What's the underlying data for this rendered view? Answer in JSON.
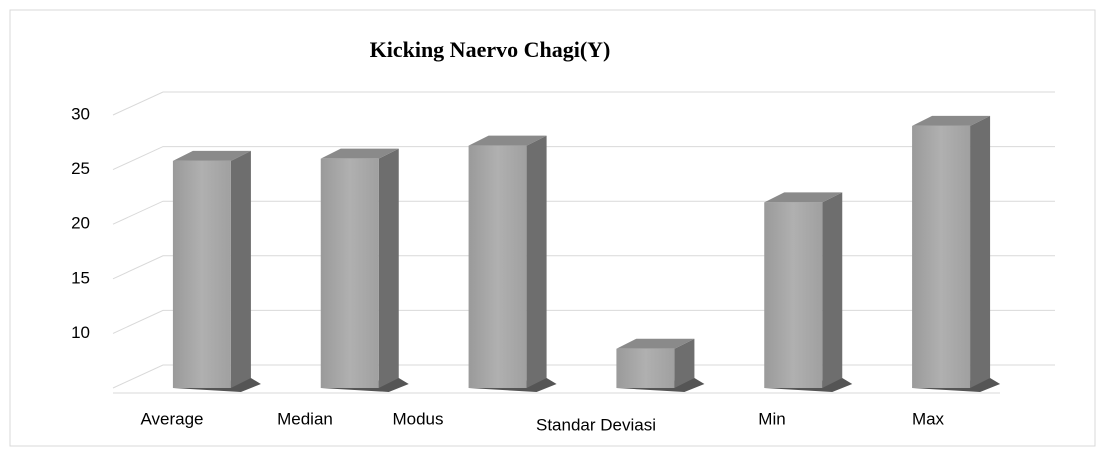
{
  "chart_data": {
    "type": "bar3d",
    "title": "Kicking Naervo Chagi(Y)",
    "categories": [
      "Average",
      "Median",
      "Modus",
      "Standar Deviasi",
      "Min",
      "Max"
    ],
    "values": [
      25.8,
      26,
      27.2,
      8.6,
      22,
      29
    ],
    "color": "#a6a6a6",
    "ylim": [
      5,
      30
    ],
    "yticks": [
      10,
      15,
      20,
      25,
      30
    ],
    "grid": true
  }
}
